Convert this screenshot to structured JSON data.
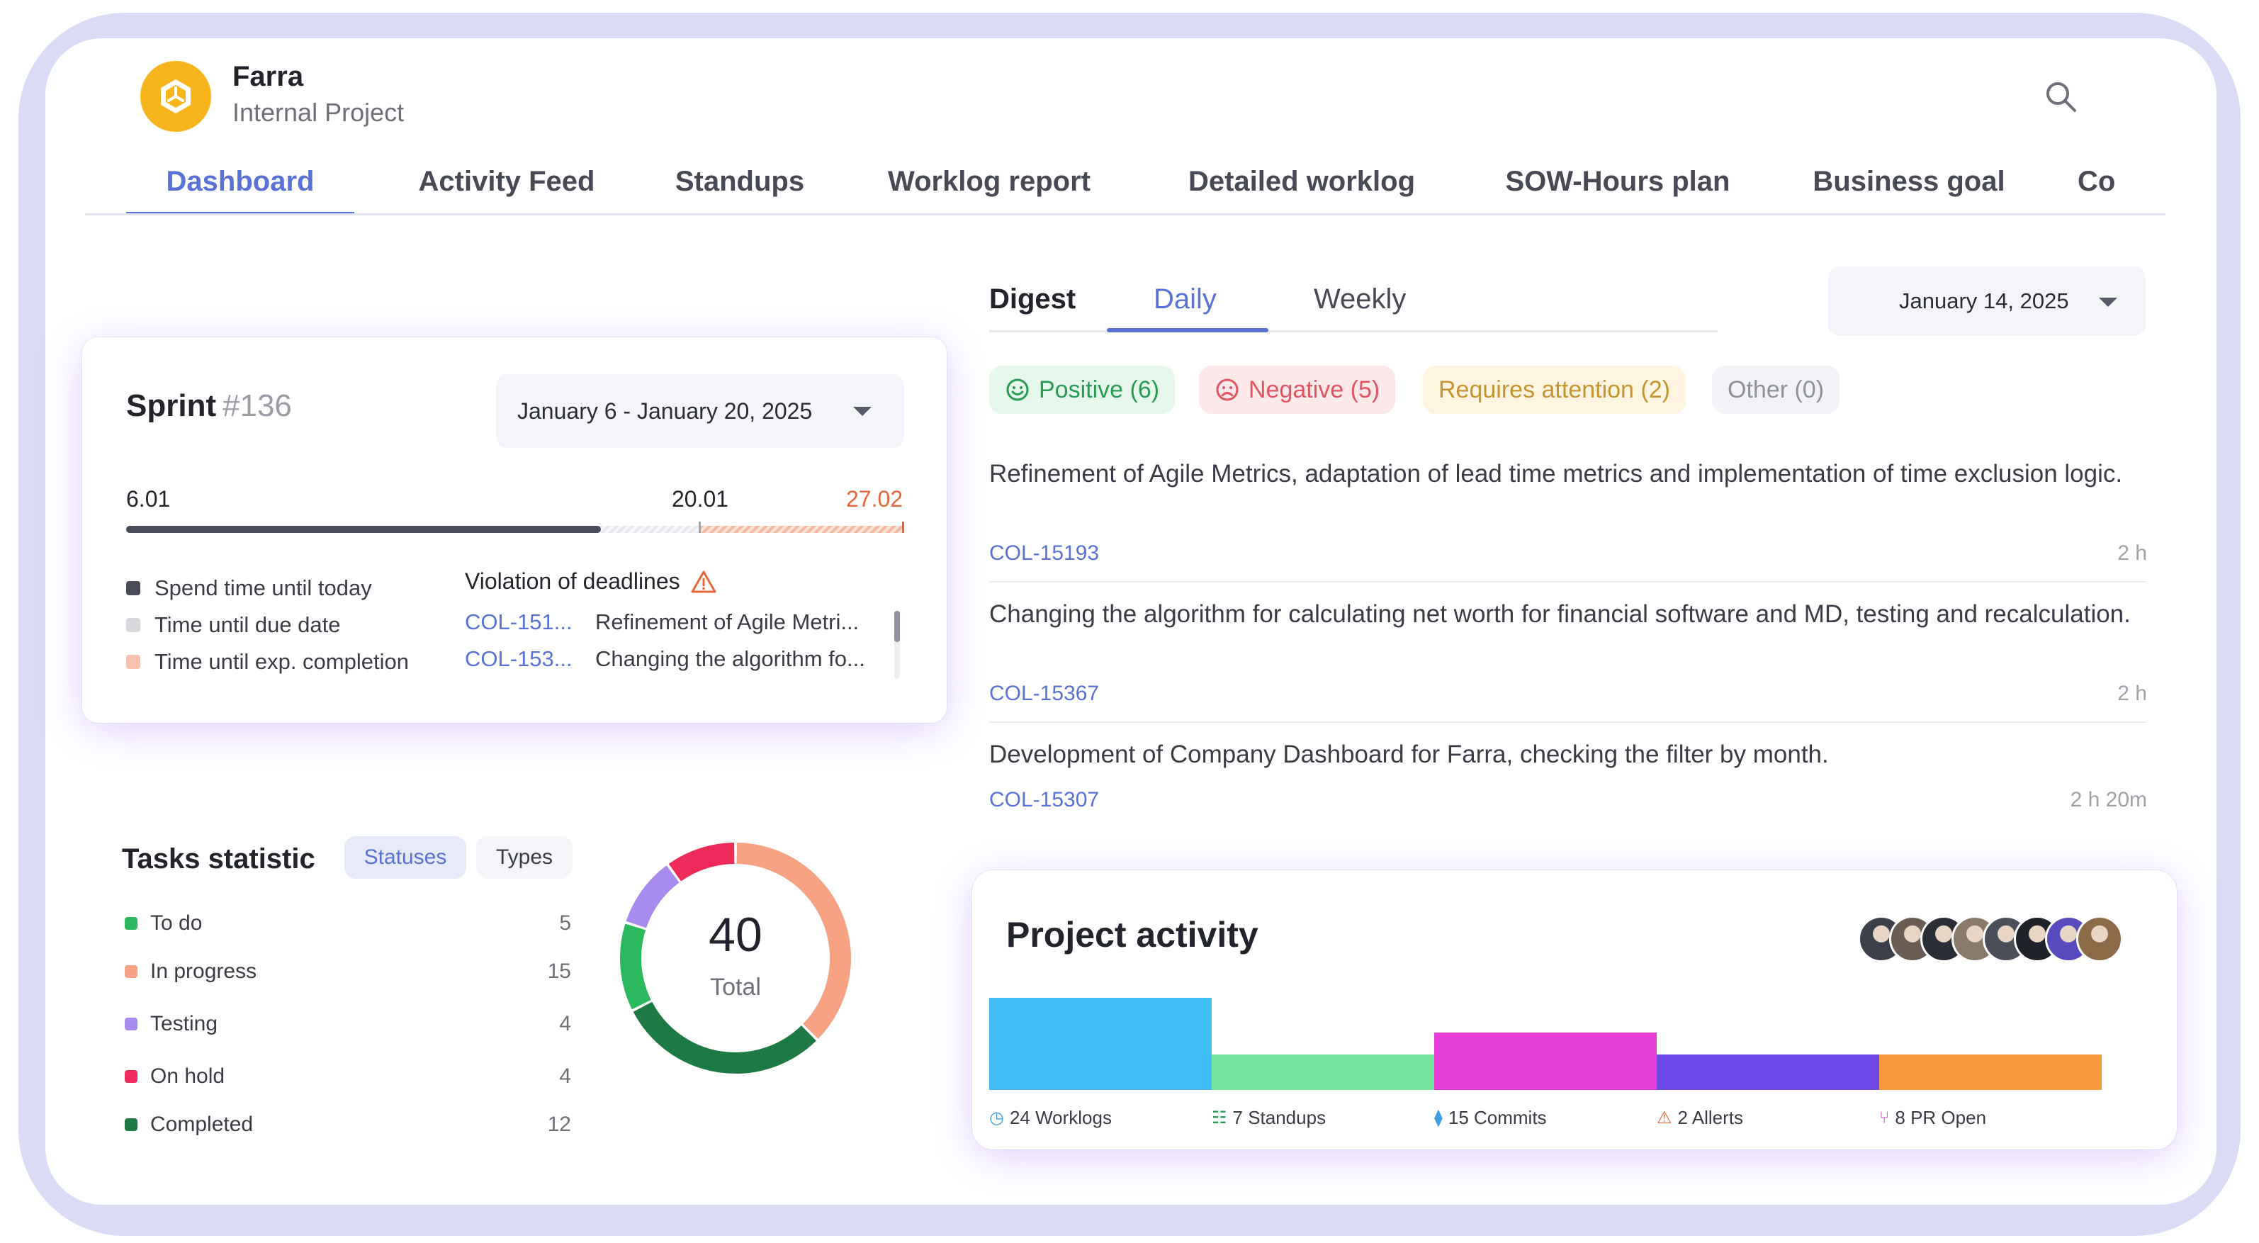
{
  "project": {
    "name": "Farra",
    "subtitle": "Internal Project"
  },
  "tabs": [
    "Dashboard",
    "Activity Feed",
    "Standups",
    "Worklog report",
    "Detailed worklog",
    "SOW-Hours plan",
    "Business goal",
    "Co"
  ],
  "active_tab": "Dashboard",
  "sprint": {
    "title": "Sprint",
    "number": "#136",
    "date_range": "January 6 - January 20, 2025",
    "start_label": "6.01",
    "due_label": "20.01",
    "expected_label": "27.02",
    "progress_fraction": 0.61,
    "legend": [
      "Spend time until today",
      "Time until due date",
      "Time until exp. completion"
    ],
    "legend_colors": [
      "#4a4c5a",
      "#d7d8de",
      "#f7c2ad"
    ],
    "violations_title": "Violation of deadlines",
    "violations": [
      {
        "code": "COL-151...",
        "desc": "Refinement of Agile Metri..."
      },
      {
        "code": "COL-153...",
        "desc": "Changing the algorithm fo..."
      }
    ]
  },
  "tasks_statistic": {
    "title": "Tasks statistic",
    "toggle": [
      "Statuses",
      "Types"
    ],
    "active_toggle": "Statuses",
    "rows": [
      {
        "label": "To do",
        "value": "5",
        "color": "#2bb95d"
      },
      {
        "label": "In progress",
        "value": "15",
        "color": "#f7a383"
      },
      {
        "label": "Testing",
        "value": "4",
        "color": "#a78bef"
      },
      {
        "label": "On hold",
        "value": "4",
        "color": "#ee2a5a"
      },
      {
        "label": "Completed",
        "value": "12",
        "color": "#1e7a45"
      }
    ],
    "total": "40",
    "total_label": "Total"
  },
  "digest": {
    "label": "Digest",
    "tabs": [
      "Daily",
      "Weekly"
    ],
    "active_tab": "Daily",
    "date": "January 14, 2025",
    "filters": [
      {
        "label": "Positive (6)",
        "kind": "positive"
      },
      {
        "label": "Negative (5)",
        "kind": "negative"
      },
      {
        "label": "Requires attention (2)",
        "kind": "attention"
      },
      {
        "label": "Other (0)",
        "kind": "other"
      }
    ],
    "items": [
      {
        "text": "Refinement of Agile Metrics, adaptation of lead time metrics and implementation of time exclusion logic.",
        "code": "COL-15193",
        "time": "2 h"
      },
      {
        "text": "Changing the algorithm for calculating net worth for financial software and MD, testing and recalculation.",
        "code": "COL-15367",
        "time": "2 h"
      },
      {
        "text": "Development of Company Dashboard for Farra, checking the filter by month.",
        "code": "COL-15307",
        "time": "2 h 20m"
      }
    ]
  },
  "project_activity": {
    "title": "Project activity",
    "segments": [
      {
        "label": "24 Worklogs",
        "value": 24,
        "color": "#40bdf5",
        "icon": "clock-icon"
      },
      {
        "label": "7 Standups",
        "value": 7,
        "color": "#74e49f",
        "icon": "chat-icon"
      },
      {
        "label": "15 Commits",
        "value": 15,
        "color": "#e63fd8",
        "icon": "commit-icon"
      },
      {
        "label": "2 Allerts",
        "value": 2,
        "color": "#6c47e6",
        "icon": "alert-icon"
      },
      {
        "label": "8 PR Open",
        "value": 8,
        "color": "#f89a3a",
        "icon": "pull-request-icon"
      }
    ],
    "avatar_count": 8
  }
}
